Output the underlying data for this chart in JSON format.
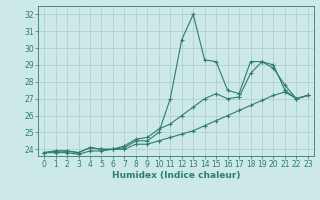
{
  "xlabel": "Humidex (Indice chaleur)",
  "x": [
    0,
    1,
    2,
    3,
    4,
    5,
    6,
    7,
    8,
    9,
    10,
    11,
    12,
    13,
    14,
    15,
    16,
    17,
    18,
    19,
    20,
    21,
    22,
    23
  ],
  "line1": [
    23.8,
    23.9,
    23.9,
    23.8,
    24.1,
    24.0,
    24.0,
    24.1,
    24.5,
    24.5,
    25.0,
    27.0,
    30.5,
    32.0,
    29.3,
    29.2,
    27.5,
    27.3,
    29.2,
    29.2,
    28.8,
    27.8,
    27.0,
    27.2
  ],
  "line2": [
    23.8,
    23.9,
    23.9,
    23.8,
    24.1,
    24.0,
    24.0,
    24.2,
    24.6,
    24.7,
    25.2,
    25.5,
    26.0,
    26.5,
    27.0,
    27.3,
    27.0,
    27.1,
    28.5,
    29.2,
    29.0,
    27.5,
    27.0,
    27.2
  ],
  "line3": [
    23.8,
    23.8,
    23.8,
    23.7,
    23.9,
    23.9,
    24.0,
    24.0,
    24.3,
    24.3,
    24.5,
    24.7,
    24.9,
    25.1,
    25.4,
    25.7,
    26.0,
    26.3,
    26.6,
    26.9,
    27.2,
    27.4,
    27.0,
    27.2
  ],
  "line_color": "#2e7d6e",
  "bg_color": "#cce8e8",
  "grid_color": "#aacccc",
  "ylim": [
    23.6,
    32.5
  ],
  "xlim": [
    -0.5,
    23.5
  ],
  "yticks": [
    24,
    25,
    26,
    27,
    28,
    29,
    30,
    31,
    32
  ],
  "xticks": [
    0,
    1,
    2,
    3,
    4,
    5,
    6,
    7,
    8,
    9,
    10,
    11,
    12,
    13,
    14,
    15,
    16,
    17,
    18,
    19,
    20,
    21,
    22,
    23
  ],
  "tick_fontsize": 5.5,
  "xlabel_fontsize": 6.5
}
